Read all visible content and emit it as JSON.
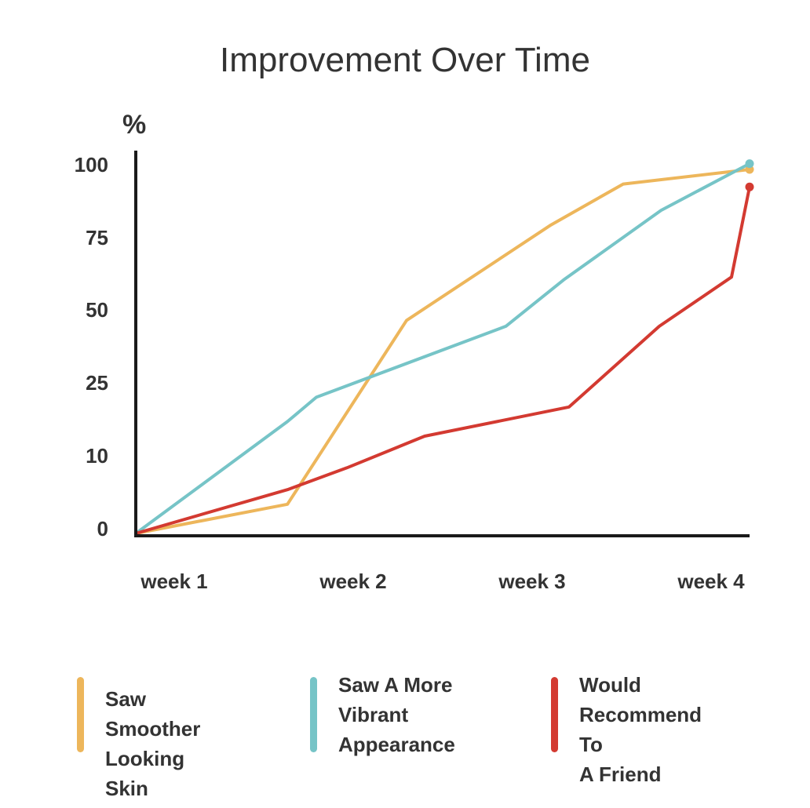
{
  "chart_data": {
    "type": "line",
    "title": "Improvement Over Time",
    "ylabel": "%",
    "xlabel": "",
    "categories": [
      "week 1",
      "week 2",
      "week 3",
      "week 4"
    ],
    "y_tick_labels": [
      "0",
      "10",
      "25",
      "50",
      "75",
      "100"
    ],
    "grid": false,
    "legend_position": "bottom",
    "series": [
      {
        "name": "Saw Smoother Looking Skin",
        "color": "#EDB65B",
        "points": [
          [
            1,
            0
          ],
          [
            1.84,
            4
          ],
          [
            2.5,
            48
          ],
          [
            3.3,
            81
          ],
          [
            3.7,
            95
          ],
          [
            4.4,
            100
          ]
        ]
      },
      {
        "name": "Saw A More Vibrant Appearance",
        "color": "#76C4C7",
        "points": [
          [
            1,
            0
          ],
          [
            1.84,
            18
          ],
          [
            2.0,
            23
          ],
          [
            3.05,
            46
          ],
          [
            3.37,
            62
          ],
          [
            3.91,
            86
          ],
          [
            4.4,
            102
          ]
        ]
      },
      {
        "name": "Would Recommend To A Friend",
        "color": "#D33A31",
        "points": [
          [
            1,
            0
          ],
          [
            1.84,
            6
          ],
          [
            2.17,
            9
          ],
          [
            2.6,
            15
          ],
          [
            3.4,
            21
          ],
          [
            3.9,
            46
          ],
          [
            4.3,
            63
          ],
          [
            4.4,
            94
          ]
        ]
      }
    ]
  },
  "legend": [
    {
      "label": "Saw Smoother\nLooking Skin",
      "color": "#EDB65B"
    },
    {
      "label": "Saw A More\nVibrant\nAppearance",
      "color": "#76C4C7"
    },
    {
      "label": "Would\nRecommend To\nA Friend",
      "color": "#D33A31"
    }
  ]
}
